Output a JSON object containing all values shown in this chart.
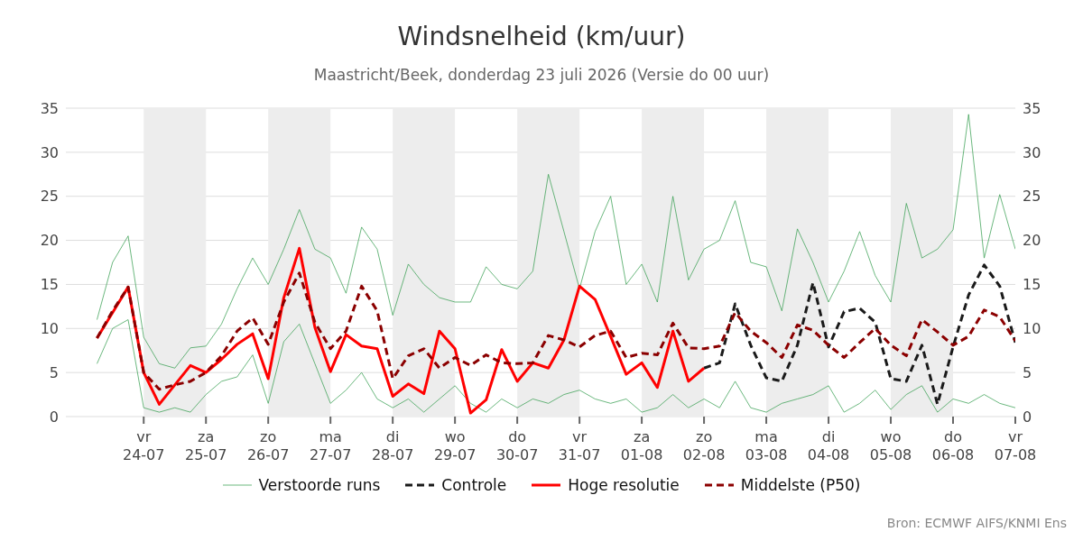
{
  "chart_data": {
    "type": "line",
    "title": "Windsnelheid (km/uur)",
    "subtitle": "Maastricht/Beek, donderdag 23 juli 2026 (Versie do 00 uur)",
    "x": [
      "2026-07-23T06:00",
      "2026-07-23T12:00",
      "2026-07-23T18:00",
      "2026-07-24T00:00",
      "2026-07-24T06:00",
      "2026-07-24T12:00",
      "2026-07-24T18:00",
      "2026-07-25T00:00",
      "2026-07-25T06:00",
      "2026-07-25T12:00",
      "2026-07-25T18:00",
      "2026-07-26T00:00",
      "2026-07-26T06:00",
      "2026-07-26T12:00",
      "2026-07-26T18:00",
      "2026-07-27T00:00",
      "2026-07-27T06:00",
      "2026-07-27T12:00",
      "2026-07-27T18:00",
      "2026-07-28T00:00",
      "2026-07-28T06:00",
      "2026-07-28T12:00",
      "2026-07-28T18:00",
      "2026-07-29T00:00",
      "2026-07-29T06:00",
      "2026-07-29T12:00",
      "2026-07-29T18:00",
      "2026-07-30T00:00",
      "2026-07-30T06:00",
      "2026-07-30T12:00",
      "2026-07-30T18:00",
      "2026-07-31T00:00",
      "2026-07-31T06:00",
      "2026-07-31T12:00",
      "2026-07-31T18:00",
      "2026-08-01T00:00",
      "2026-08-01T06:00",
      "2026-08-01T12:00",
      "2026-08-01T18:00",
      "2026-08-02T00:00",
      "2026-08-02T06:00",
      "2026-08-02T12:00",
      "2026-08-02T18:00",
      "2026-08-03T00:00",
      "2026-08-03T06:00",
      "2026-08-03T12:00",
      "2026-08-03T18:00",
      "2026-08-04T00:00",
      "2026-08-04T06:00",
      "2026-08-04T12:00",
      "2026-08-04T18:00",
      "2026-08-05T00:00",
      "2026-08-05T06:00",
      "2026-08-05T12:00",
      "2026-08-05T18:00",
      "2026-08-06T00:00",
      "2026-08-06T06:00",
      "2026-08-06T12:00",
      "2026-08-06T18:00",
      "2026-08-07T00:00"
    ],
    "series": [
      {
        "name": "Verstoorde runs",
        "color": "#2e9a48",
        "line_style": "solid",
        "values": [
          11,
          17.5,
          20.5,
          9,
          6,
          5.5,
          7.8,
          8,
          10.5,
          14.5,
          18,
          15,
          19,
          23.5,
          19,
          18,
          14,
          21.5,
          19,
          11.5,
          17.3,
          15,
          13.5,
          13,
          13,
          17,
          15,
          14.5,
          16.5,
          27.5,
          21,
          14.5,
          21,
          25,
          15,
          17.3,
          13,
          25,
          15.5,
          19,
          20,
          24.5,
          17.5,
          17,
          12,
          21.3,
          17.5,
          13,
          16.5,
          21,
          16,
          13,
          24.2,
          18,
          19,
          21.2,
          34.3,
          18,
          25.2,
          19
        ]
      },
      {
        "color": "#2e9a48",
        "line_style": "solid",
        "values": [
          6,
          10,
          11,
          1,
          0.5,
          1,
          0.5,
          2.5,
          4,
          4.5,
          7,
          1.5,
          8.5,
          10.5,
          6,
          1.5,
          3,
          5,
          2,
          1,
          2,
          0.5,
          2,
          3.5,
          1.5,
          0.5,
          2,
          1,
          2,
          1.5,
          2.5,
          3,
          2,
          1.5,
          2,
          0.5,
          1,
          2.5,
          1,
          2,
          1,
          4,
          1,
          0.5,
          1.5,
          2,
          2.5,
          3.5,
          0.5,
          1.5,
          3,
          0.8,
          2.5,
          3.5,
          0.5,
          2,
          1.5,
          2.5,
          1.5,
          1
        ]
      },
      {
        "name": "Controle",
        "color": "#1a1a1a",
        "line_style": "dashed",
        "values": [
          null,
          null,
          null,
          null,
          null,
          null,
          null,
          null,
          null,
          null,
          null,
          null,
          null,
          null,
          null,
          null,
          null,
          null,
          null,
          null,
          null,
          null,
          null,
          null,
          null,
          null,
          null,
          null,
          null,
          null,
          null,
          null,
          null,
          null,
          null,
          null,
          null,
          null,
          null,
          5.5,
          6.1,
          12.8,
          8.1,
          4.4,
          4.0,
          8.1,
          15.2,
          7.9,
          11.9,
          12.3,
          10.7,
          4.3,
          4.0,
          8.1,
          1.4,
          7.9,
          13.8,
          17.2,
          14.8,
          8.4
        ]
      },
      {
        "name": "Hoge resolutie",
        "color": "#ff0000",
        "line_style": "solid",
        "values": [
          8.9,
          11.8,
          14.7,
          5.0,
          1.4,
          3.6,
          5.8,
          5.0,
          6.5,
          8.2,
          9.4,
          4.3,
          13.5,
          19.1,
          10.1,
          5.1,
          9.3,
          8.0,
          7.7,
          2.3,
          3.7,
          2.6,
          9.7,
          7.7,
          0.4,
          1.9,
          7.6,
          4.0,
          6.1,
          5.5,
          8.7,
          14.8,
          13.3,
          9.1,
          4.8,
          6.1,
          3.3,
          9.7,
          4.0,
          5.5,
          null,
          null,
          null,
          null,
          null,
          null,
          null,
          null,
          null,
          null,
          null,
          null,
          null,
          null,
          null,
          null,
          null,
          null,
          null,
          null
        ]
      },
      {
        "name": "Middelste (P50)",
        "color": "#8b0000",
        "line_style": "dashed",
        "values": [
          8.9,
          12,
          14.7,
          5.0,
          3.1,
          3.6,
          4.0,
          5.0,
          6.9,
          9.7,
          11.2,
          8.2,
          13,
          16.3,
          10.7,
          7.7,
          9.7,
          14.8,
          12.0,
          4.3,
          6.9,
          7.7,
          5.5,
          6.7,
          5.8,
          7.0,
          6.1,
          6.0,
          6.1,
          9.2,
          8.7,
          7.9,
          9.2,
          9.7,
          6.7,
          7.2,
          7.0,
          10.6,
          7.8,
          7.7,
          8.0,
          11.8,
          9.7,
          8.4,
          6.7,
          10.4,
          9.8,
          8.1,
          6.7,
          8.4,
          10.0,
          8.1,
          6.9,
          11.0,
          9.6,
          8.1,
          9.1,
          12.1,
          11.3,
          8.6
        ]
      }
    ],
    "xlim": [
      "2026-07-22T18:00",
      "2026-08-07T00:00"
    ],
    "xticks": [
      {
        "value": "2026-07-24",
        "label": "vr\n24-07"
      },
      {
        "value": "2026-07-25",
        "label": "za\n25-07"
      },
      {
        "value": "2026-07-26",
        "label": "zo\n26-07"
      },
      {
        "value": "2026-07-27",
        "label": "ma\n27-07"
      },
      {
        "value": "2026-07-28",
        "label": "di\n28-07"
      },
      {
        "value": "2026-07-29",
        "label": "wo\n29-07"
      },
      {
        "value": "2026-07-30",
        "label": "do\n30-07"
      },
      {
        "value": "2026-07-31",
        "label": "vr\n31-07"
      },
      {
        "value": "2026-08-01",
        "label": "za\n01-08"
      },
      {
        "value": "2026-08-02",
        "label": "zo\n02-08"
      },
      {
        "value": "2026-08-03",
        "label": "ma\n03-08"
      },
      {
        "value": "2026-08-04",
        "label": "di\n04-08"
      },
      {
        "value": "2026-08-05",
        "label": "wo\n05-08"
      },
      {
        "value": "2026-08-06",
        "label": "do\n06-08"
      },
      {
        "value": "2026-08-07",
        "label": "vr\n07-08"
      }
    ],
    "ylim": [
      0,
      35
    ],
    "yticks": [
      0,
      5,
      10,
      15,
      20,
      25,
      30,
      35
    ],
    "y2lim": [
      0,
      35
    ],
    "y2ticks": [
      0,
      5,
      10,
      15,
      20,
      25,
      30,
      35
    ],
    "bands": [
      {
        "axis": "x",
        "from": "2026-07-24",
        "to": "2026-07-25",
        "color": "#ededed"
      },
      {
        "axis": "x",
        "from": "2026-07-26",
        "to": "2026-07-27",
        "color": "#ededed"
      },
      {
        "axis": "x",
        "from": "2026-07-28",
        "to": "2026-07-29",
        "color": "#ededed"
      },
      {
        "axis": "x",
        "from": "2026-07-30",
        "to": "2026-07-31",
        "color": "#ededed"
      },
      {
        "axis": "x",
        "from": "2026-08-01",
        "to": "2026-08-02",
        "color": "#ededed"
      },
      {
        "axis": "x",
        "from": "2026-08-03",
        "to": "2026-08-04",
        "color": "#ededed"
      },
      {
        "axis": "x",
        "from": "2026-08-05",
        "to": "2026-08-06",
        "color": "#ededed"
      }
    ],
    "grid": "y",
    "legend": "bottom",
    "annotations": [
      "Bron: ECMWF AIFS/KNMI Ens"
    ]
  }
}
